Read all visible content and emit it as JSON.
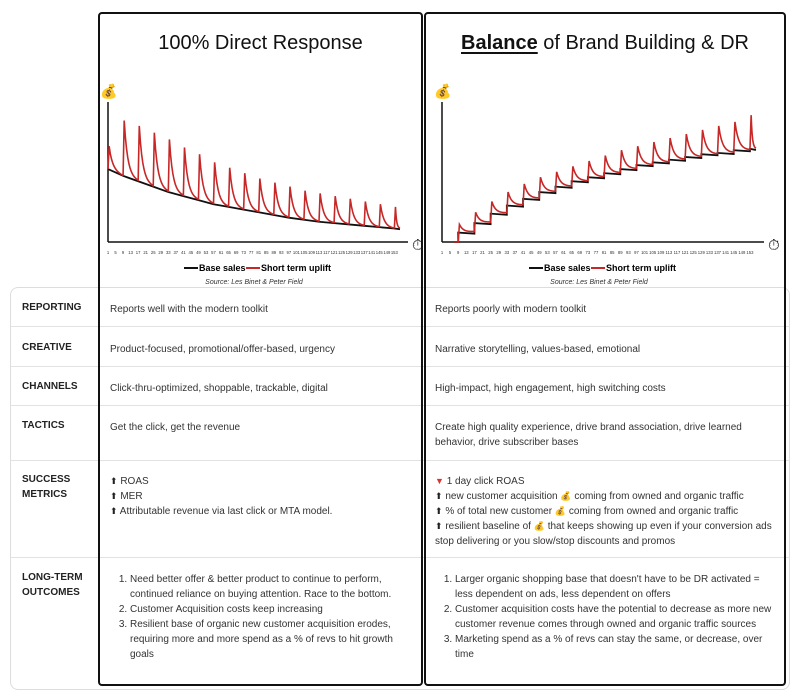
{
  "columns": [
    {
      "title": "100% Direct Response",
      "cells": {
        "reporting": "Reports well with the modern toolkit",
        "creative": "Product-focused, promotional/offer-based, urgency",
        "channels": "Click-thru-optimized, shoppable, trackable, digital",
        "tactics": "Get the click, get the revenue",
        "success": [
          {
            "icon": "arrow-up",
            "text": "ROAS"
          },
          {
            "icon": "arrow-up",
            "text": "MER"
          },
          {
            "icon": "arrow-up",
            "text": "Attributable revenue via last click or MTA model."
          }
        ],
        "outcomes": [
          "Need better offer & better product to continue to perform, continued reliance on buying attention. Race to the bottom.",
          "Customer Acquisition costs keep increasing",
          "Resilient base of organic new customer acquisition erodes, requiring more and more spend as a % of revs to hit growth goals"
        ]
      }
    },
    {
      "title_bold": "Balance",
      "title_rest": " of Brand Building & DR",
      "cells": {
        "reporting": "Reports poorly with modern toolkit",
        "creative": "Narrative storytelling, values-based, emotional",
        "channels": "High-impact, high engagement, high switching costs",
        "tactics": "Create high quality experience, drive brand association, drive learned behavior, drive subscriber bases",
        "success": [
          {
            "icon": "arrow-down",
            "parts": [
              "1 day click ROAS"
            ]
          },
          {
            "icon": "arrow-up",
            "parts": [
              "new customer acquisition ",
              "coming from owned and organic traffic"
            ]
          },
          {
            "icon": "arrow-up",
            "parts": [
              "% of total new customer ",
              "coming from owned and organic traffic"
            ]
          },
          {
            "icon": "arrow-up",
            "parts": [
              "resilient baseline of ",
              "that keeps showing up even if your conversion ads stop delivering or you slow/stop discounts and promos"
            ]
          }
        ],
        "outcomes": [
          "Larger organic shopping base that doesn't have to be DR activated = less dependent on ads, less dependent on offers",
          "Customer acquisition costs have the potential to decrease as more new customer revenue comes through owned and organic traffic sources",
          "Marketing spend as a % of revs can stay the same, or decrease, over time"
        ]
      }
    }
  ],
  "row_labels": {
    "reporting": "REPORTING",
    "creative": "CREATIVE",
    "channels": "CHANNELS",
    "tactics": "TACTICS",
    "success": [
      "SUCCESS",
      "METRICS"
    ],
    "outcomes": [
      "LONG-TERM",
      "OUTCOMES"
    ]
  },
  "chart_data": [
    {
      "type": "line",
      "legend": [
        "Base sales",
        "Short term uplift"
      ],
      "legend_placement": "bottom",
      "source": "Source: Les Binet & Peter Field",
      "y_icon": "money-bag",
      "x_icon": "stopwatch",
      "ylim": [
        0,
        100
      ],
      "xticks": [
        1,
        5,
        9,
        13,
        17,
        21,
        25,
        29,
        33,
        37,
        41,
        45,
        49,
        53,
        57,
        61,
        65,
        69,
        73,
        77,
        81,
        85,
        89,
        93,
        97,
        101,
        105,
        109,
        113,
        117,
        121,
        125,
        129,
        133,
        137,
        141,
        145,
        149,
        153
      ],
      "x": [
        1,
        9,
        17,
        25,
        33,
        41,
        49,
        57,
        65,
        73,
        81,
        89,
        97,
        105,
        113,
        121,
        129,
        137,
        145,
        153
      ],
      "series": [
        {
          "name": "Base sales",
          "color": "#111111",
          "values": [
            54,
            49,
            45,
            41,
            37,
            34,
            31,
            28,
            26,
            24,
            22,
            20,
            18,
            16.5,
            15,
            14,
            13,
            12,
            11,
            10
          ]
        },
        {
          "name": "Short term uplift",
          "color": "#c62828",
          "peaks": [
            71,
            90,
            86,
            81,
            76,
            70,
            65,
            59,
            55,
            51,
            47,
            44,
            41,
            38,
            36,
            34,
            32,
            30,
            28,
            26
          ]
        }
      ]
    },
    {
      "type": "line",
      "legend": [
        "Base sales",
        "Short term uplift"
      ],
      "legend_placement": "bottom",
      "source": "Source: Les Binet & Peter Field",
      "y_icon": "money-bag",
      "x_icon": "stopwatch",
      "ylim": [
        0,
        100
      ],
      "xticks": [
        1,
        5,
        9,
        13,
        17,
        21,
        25,
        29,
        33,
        37,
        41,
        45,
        49,
        53,
        57,
        61,
        65,
        69,
        73,
        77,
        81,
        85,
        89,
        93,
        97,
        101,
        105,
        109,
        113,
        117,
        121,
        125,
        129,
        133,
        137,
        141,
        145,
        149,
        153
      ],
      "x": [
        9,
        17,
        25,
        33,
        41,
        49,
        57,
        65,
        73,
        81,
        89,
        97,
        105,
        113,
        121,
        129,
        137,
        145,
        153
      ],
      "series": [
        {
          "name": "Base sales",
          "color": "#111111",
          "values": [
            7,
            14,
            21,
            27,
            32,
            37,
            41,
            45,
            48,
            51,
            54,
            57,
            59,
            61,
            63,
            65,
            66,
            68,
            69
          ]
        },
        {
          "name": "Short term uplift",
          "color": "#c62828",
          "peaks": [
            13,
            22,
            30,
            37,
            43,
            48,
            52,
            56,
            60,
            64,
            68,
            71,
            74,
            77,
            80,
            83,
            86,
            89,
            94
          ]
        }
      ]
    }
  ]
}
